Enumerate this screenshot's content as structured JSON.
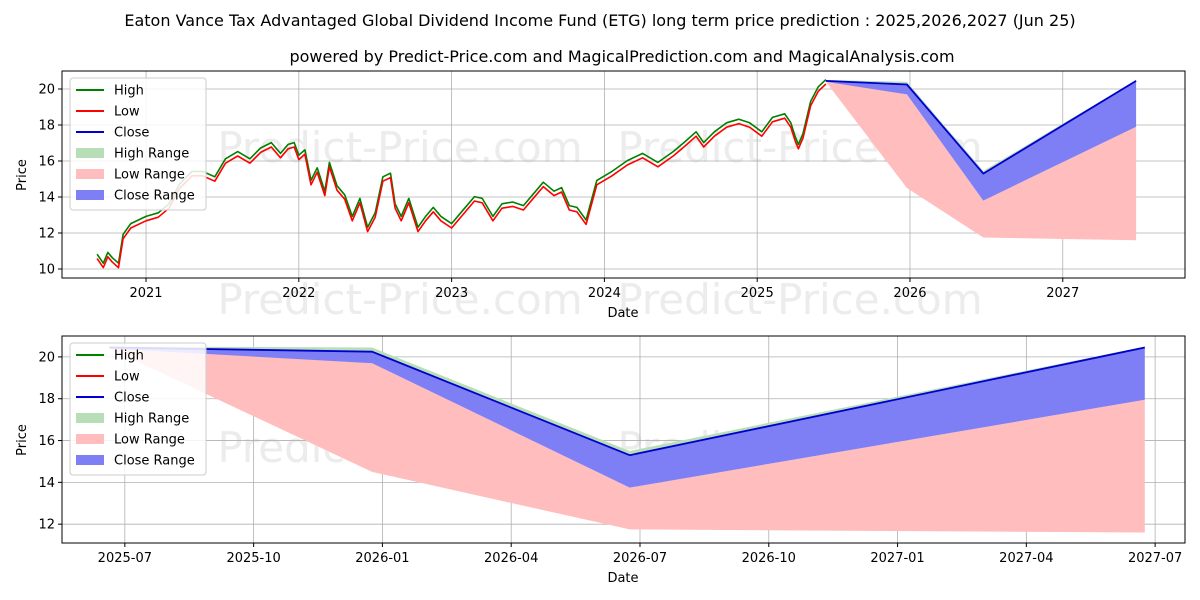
{
  "title": "Eaton Vance Tax Advantaged Global Dividend Income Fund (ETG) long term price prediction : 2025,2026,2027 (Jun 25)",
  "subtitle": "powered by Predict-Price.com and MagicalPrediction.com and MagicalAnalysis.com",
  "watermark": "Predict-Price.com",
  "colors": {
    "high": "#008000",
    "low": "#ff0000",
    "close": "#0000cd",
    "high_range": "#b7deb7",
    "low_range": "#ffbdbd",
    "close_range": "#7f7ff5",
    "grid": "#b0b0b0"
  },
  "chart_data": [
    {
      "type": "line",
      "xlabel": "Date",
      "ylabel": "Price",
      "xlim": [
        2020.45,
        2027.8
      ],
      "ylim": [
        9.5,
        21.0
      ],
      "xticks": [
        2021,
        2022,
        2023,
        2024,
        2025,
        2026,
        2027
      ],
      "xtick_labels": [
        "2021",
        "2022",
        "2023",
        "2024",
        "2025",
        "2026",
        "2027"
      ],
      "yticks": [
        10,
        12,
        14,
        16,
        18,
        20
      ],
      "ytick_labels": [
        "10",
        "12",
        "14",
        "16",
        "18",
        "20"
      ],
      "legend": [
        "High",
        "Low",
        "Close",
        "High Range",
        "Low Range",
        "Close Range"
      ],
      "legend_position": "top-left",
      "history": {
        "x": [
          2020.68,
          2020.72,
          2020.75,
          2020.78,
          2020.82,
          2020.85,
          2020.9,
          2021.0,
          2021.08,
          2021.15,
          2021.22,
          2021.3,
          2021.37,
          2021.45,
          2021.52,
          2021.6,
          2021.68,
          2021.75,
          2021.82,
          2021.88,
          2021.93,
          2021.97,
          2022.0,
          2022.04,
          2022.08,
          2022.12,
          2022.17,
          2022.2,
          2022.25,
          2022.3,
          2022.35,
          2022.4,
          2022.45,
          2022.5,
          2022.55,
          2022.6,
          2022.63,
          2022.67,
          2022.72,
          2022.78,
          2022.83,
          2022.88,
          2022.93,
          2023.0,
          2023.08,
          2023.15,
          2023.2,
          2023.27,
          2023.33,
          2023.4,
          2023.47,
          2023.53,
          2023.6,
          2023.67,
          2023.72,
          2023.77,
          2023.82,
          2023.88,
          2023.95,
          2024.05,
          2024.15,
          2024.25,
          2024.35,
          2024.45,
          2024.52,
          2024.6,
          2024.65,
          2024.72,
          2024.8,
          2024.88,
          2024.95,
          2025.03,
          2025.1,
          2025.18,
          2025.22,
          2025.25,
          2025.27,
          2025.3,
          2025.35,
          2025.4,
          2025.45
        ],
        "close": [
          10.7,
          10.2,
          10.8,
          10.5,
          10.2,
          11.8,
          12.4,
          12.8,
          13.0,
          13.5,
          14.6,
          15.3,
          15.3,
          15.0,
          16.0,
          16.4,
          16.0,
          16.6,
          16.9,
          16.3,
          16.8,
          16.9,
          16.2,
          16.5,
          14.8,
          15.5,
          14.2,
          15.8,
          14.5,
          14.0,
          12.8,
          13.8,
          12.2,
          13.0,
          15.0,
          15.2,
          13.5,
          12.8,
          13.8,
          12.2,
          12.8,
          13.3,
          12.8,
          12.4,
          13.2,
          13.9,
          13.8,
          12.8,
          13.5,
          13.6,
          13.4,
          14.0,
          14.7,
          14.2,
          14.4,
          13.4,
          13.3,
          12.6,
          14.8,
          15.3,
          15.9,
          16.3,
          15.8,
          16.4,
          16.9,
          17.5,
          16.9,
          17.5,
          18.0,
          18.2,
          18.0,
          17.5,
          18.3,
          18.5,
          18.0,
          17.2,
          16.8,
          17.4,
          19.2,
          20.0,
          20.4
        ]
      },
      "forecast": {
        "x": [
          2025.45,
          2025.98,
          2026.48,
          2027.48
        ],
        "close": [
          20.45,
          20.25,
          15.3,
          20.45
        ],
        "high_range": {
          "upper": [
            20.5,
            20.4,
            15.45,
            20.5
          ],
          "lower": [
            20.45,
            20.25,
            15.3,
            20.45
          ]
        },
        "low_range": {
          "upper": [
            20.45,
            19.7,
            13.8,
            17.9
          ],
          "lower": [
            20.4,
            14.5,
            11.75,
            11.6
          ]
        },
        "close_range": {
          "upper": [
            20.45,
            20.25,
            15.3,
            20.45
          ],
          "lower": [
            20.4,
            19.7,
            13.8,
            17.9
          ]
        }
      }
    },
    {
      "type": "line",
      "xlabel": "Date",
      "ylabel": "Price",
      "xlim": [
        2025.378,
        2027.558
      ],
      "ylim": [
        11.1,
        21.0
      ],
      "xticks": [
        2025.5,
        2025.75,
        2026.0,
        2026.25,
        2026.5,
        2026.75,
        2027.0,
        2027.25,
        2027.5
      ],
      "xtick_labels": [
        "2025-07",
        "2025-10",
        "2026-01",
        "2026-04",
        "2026-07",
        "2026-10",
        "2027-01",
        "2027-04",
        "2027-07"
      ],
      "yticks": [
        12,
        14,
        16,
        18,
        20
      ],
      "ytick_labels": [
        "12",
        "14",
        "16",
        "18",
        "20"
      ],
      "legend": [
        "High",
        "Low",
        "Close",
        "High Range",
        "Low Range",
        "Close Range"
      ],
      "legend_position": "top-left",
      "forecast": {
        "x": [
          2025.47,
          2025.98,
          2026.48,
          2027.48
        ],
        "close": [
          20.45,
          20.25,
          15.3,
          20.45
        ],
        "high_range": {
          "upper": [
            20.5,
            20.45,
            15.5,
            20.5
          ],
          "lower": [
            20.45,
            20.25,
            15.3,
            20.45
          ]
        },
        "low_range": {
          "upper": [
            20.45,
            19.7,
            13.75,
            17.95
          ],
          "lower": [
            20.4,
            14.5,
            11.75,
            11.6
          ]
        },
        "close_range": {
          "upper": [
            20.45,
            20.25,
            15.3,
            20.45
          ],
          "lower": [
            20.4,
            19.7,
            13.75,
            17.95
          ]
        }
      }
    }
  ]
}
